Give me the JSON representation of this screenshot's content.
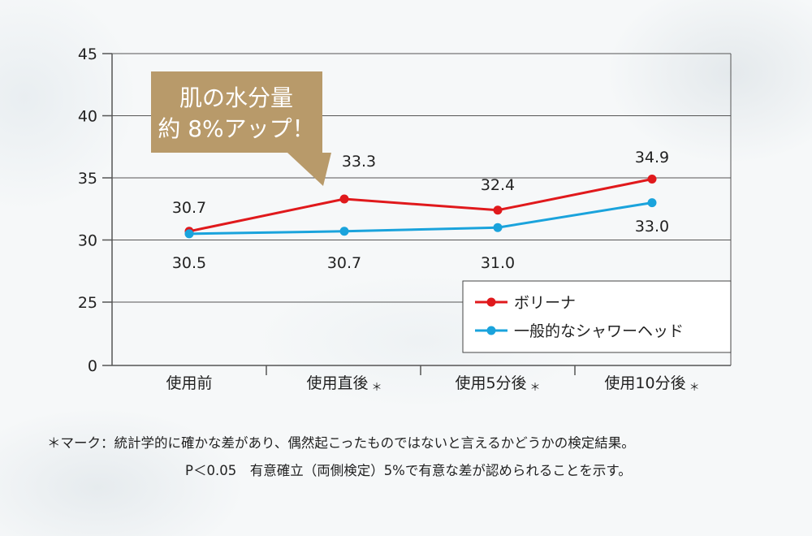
{
  "chart_data": {
    "type": "line",
    "categories": [
      "使用前",
      "使用直後",
      "使用5分後",
      "使用10分後"
    ],
    "category_marks": [
      "",
      "＊",
      "＊",
      "＊"
    ],
    "ylim": [
      0,
      45
    ],
    "yticks": [
      0,
      25,
      30,
      35,
      40,
      45
    ],
    "grid": true,
    "legend": "bottom-right",
    "series": [
      {
        "name": "ボリーナ",
        "values": [
          30.7,
          33.3,
          32.4,
          34.9
        ],
        "labels": [
          "30.7",
          "33.3",
          "32.4",
          "34.9"
        ],
        "color": "#e0191c",
        "label_position": "above"
      },
      {
        "name": "一般的なシャワーヘッド",
        "values": [
          30.5,
          30.7,
          31.0,
          33.0
        ],
        "labels": [
          "30.5",
          "30.7",
          "31.0",
          "33.0"
        ],
        "color": "#1aa3dc",
        "label_position": "below"
      }
    ],
    "annotation": {
      "lines": [
        "肌の水分量",
        "約 8%アップ！"
      ],
      "color": "#b89a6a"
    }
  },
  "footnote": {
    "line1": "＊マーク：統計学的に確かな差があり、偶然起こったものではないと言えるかどうかの検定結果。",
    "line2": "P＜0.05　有意確立（両側検定）5%で有意な差が認められることを示す。"
  }
}
